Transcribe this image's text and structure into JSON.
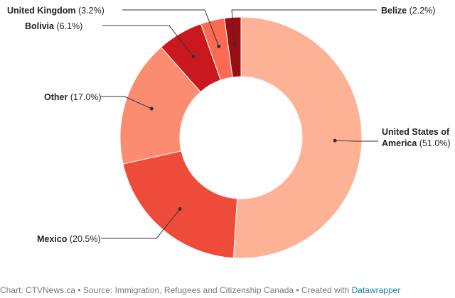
{
  "chart_data": {
    "type": "pie",
    "donut": true,
    "slices": [
      {
        "label": "United States of America",
        "label_lines": [
          "United States of",
          "America"
        ],
        "value": 51.0,
        "display": "(51.0%)",
        "color": "#fdb295"
      },
      {
        "label": "Mexico",
        "value": 20.5,
        "display": "(20.5%)",
        "color": "#ee4b3a"
      },
      {
        "label": "Other",
        "value": 17.0,
        "display": "(17.0%)",
        "color": "#fc8c70"
      },
      {
        "label": "Bolivia",
        "value": 6.1,
        "display": "(6.1%)",
        "color": "#c9181e"
      },
      {
        "label": "United Kingdom",
        "value": 3.2,
        "display": "(3.2%)",
        "color": "#fb6a52"
      },
      {
        "label": "Belize",
        "value": 2.2,
        "display": "(2.2%)",
        "color": "#9a0d14"
      }
    ]
  },
  "footer": {
    "text": "Chart: CTVNews.ca • Source: Immigration, Refugees and Citizenship Canada • Created with ",
    "link_text": "Datawrapper"
  }
}
